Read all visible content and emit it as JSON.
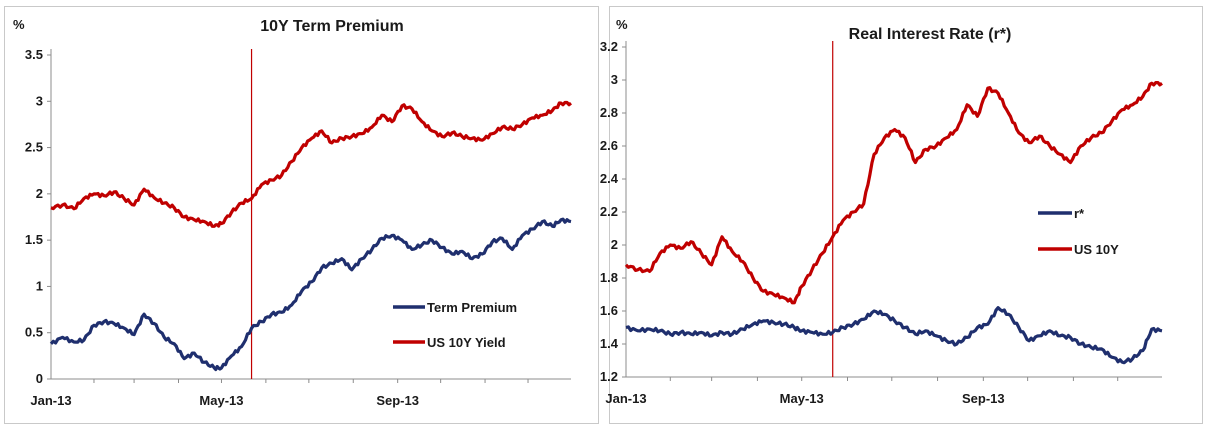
{
  "colors": {
    "navy": "#1f2f6e",
    "red": "#c00000",
    "axis": "#8c8c8c"
  },
  "chart_data": [
    {
      "type": "line",
      "title": "10Y Term Premium",
      "unit_label": "%",
      "xlabel": "",
      "ylabel": "",
      "x_ticks": [
        "Jan-13",
        "May-13",
        "Sep-13"
      ],
      "x_tick_dates": [
        "2013-01-02",
        "2013-05-01",
        "2013-09-01"
      ],
      "xlim": [
        "2013-01-02",
        "2013-12-31"
      ],
      "y_ticks": [
        "0",
        "0.5",
        "1",
        "1.5",
        "2",
        "2.5",
        "3",
        "3.5"
      ],
      "ylim": [
        0,
        3.5
      ],
      "grid": false,
      "legend_position": "bottom-right",
      "vline_date": "2013-05-22",
      "series": [
        {
          "name": "Term Premium",
          "color": "#1f2f6e",
          "x": [
            "2013-01-02",
            "2013-01-10",
            "2013-01-18",
            "2013-01-25",
            "2013-02-01",
            "2013-02-08",
            "2013-02-15",
            "2013-02-22",
            "2013-03-01",
            "2013-03-08",
            "2013-03-15",
            "2013-03-22",
            "2013-03-29",
            "2013-04-05",
            "2013-04-12",
            "2013-04-19",
            "2013-04-26",
            "2013-05-01",
            "2013-05-08",
            "2013-05-15",
            "2013-05-22",
            "2013-05-29",
            "2013-06-05",
            "2013-06-12",
            "2013-06-19",
            "2013-06-26",
            "2013-07-03",
            "2013-07-10",
            "2013-07-17",
            "2013-07-24",
            "2013-07-31",
            "2013-08-07",
            "2013-08-14",
            "2013-08-21",
            "2013-08-28",
            "2013-09-04",
            "2013-09-11",
            "2013-09-18",
            "2013-09-25",
            "2013-10-02",
            "2013-10-09",
            "2013-10-16",
            "2013-10-23",
            "2013-10-30",
            "2013-11-06",
            "2013-11-13",
            "2013-11-20",
            "2013-11-27",
            "2013-12-04",
            "2013-12-11",
            "2013-12-18",
            "2013-12-24",
            "2013-12-31"
          ],
          "y": [
            0.38,
            0.45,
            0.4,
            0.42,
            0.58,
            0.62,
            0.6,
            0.55,
            0.48,
            0.7,
            0.6,
            0.45,
            0.38,
            0.22,
            0.28,
            0.18,
            0.12,
            0.12,
            0.25,
            0.35,
            0.55,
            0.62,
            0.7,
            0.72,
            0.8,
            0.95,
            1.05,
            1.2,
            1.25,
            1.3,
            1.18,
            1.3,
            1.4,
            1.52,
            1.55,
            1.5,
            1.4,
            1.45,
            1.5,
            1.42,
            1.35,
            1.38,
            1.3,
            1.35,
            1.48,
            1.52,
            1.4,
            1.55,
            1.62,
            1.7,
            1.65,
            1.72,
            1.7
          ]
        },
        {
          "name": "US 10Y Yield",
          "color": "#c00000",
          "x": [
            "2013-01-02",
            "2013-01-10",
            "2013-01-18",
            "2013-01-25",
            "2013-02-01",
            "2013-02-08",
            "2013-02-15",
            "2013-02-22",
            "2013-03-01",
            "2013-03-08",
            "2013-03-15",
            "2013-03-22",
            "2013-03-29",
            "2013-04-05",
            "2013-04-12",
            "2013-04-19",
            "2013-04-26",
            "2013-05-01",
            "2013-05-08",
            "2013-05-15",
            "2013-05-22",
            "2013-05-29",
            "2013-06-05",
            "2013-06-12",
            "2013-06-19",
            "2013-06-26",
            "2013-07-03",
            "2013-07-10",
            "2013-07-17",
            "2013-07-24",
            "2013-07-31",
            "2013-08-07",
            "2013-08-14",
            "2013-08-21",
            "2013-08-28",
            "2013-09-04",
            "2013-09-11",
            "2013-09-18",
            "2013-09-25",
            "2013-10-02",
            "2013-10-09",
            "2013-10-16",
            "2013-10-23",
            "2013-10-30",
            "2013-11-06",
            "2013-11-13",
            "2013-11-20",
            "2013-11-27",
            "2013-12-04",
            "2013-12-11",
            "2013-12-18",
            "2013-12-24",
            "2013-12-31"
          ],
          "y": [
            1.85,
            1.88,
            1.84,
            1.95,
            2.0,
            1.98,
            2.02,
            1.95,
            1.88,
            2.05,
            1.96,
            1.9,
            1.85,
            1.75,
            1.72,
            1.7,
            1.65,
            1.68,
            1.8,
            1.9,
            1.95,
            2.1,
            2.15,
            2.2,
            2.35,
            2.5,
            2.6,
            2.68,
            2.55,
            2.6,
            2.62,
            2.65,
            2.72,
            2.85,
            2.78,
            2.95,
            2.92,
            2.78,
            2.68,
            2.62,
            2.66,
            2.62,
            2.6,
            2.58,
            2.65,
            2.72,
            2.7,
            2.75,
            2.82,
            2.85,
            2.9,
            2.98,
            2.98
          ]
        }
      ]
    },
    {
      "type": "line",
      "title": "Real Interest Rate (r*)",
      "unit_label": "%",
      "xlabel": "",
      "ylabel": "",
      "x_ticks": [
        "Jan-13",
        "May-13",
        "Sep-13"
      ],
      "x_tick_dates": [
        "2013-01-02",
        "2013-05-01",
        "2013-09-01"
      ],
      "xlim": [
        "2013-01-02",
        "2013-12-31"
      ],
      "y_ticks": [
        "1.2",
        "1.4",
        "1.6",
        "1.8",
        "2",
        "2.2",
        "2.4",
        "2.6",
        "2.8",
        "3",
        "3.2"
      ],
      "ylim": [
        1.2,
        3.2
      ],
      "grid": false,
      "legend_position": "right",
      "vline_date": "2013-05-22",
      "series": [
        {
          "name": "r*",
          "color": "#1f2f6e",
          "x": [
            "2013-01-02",
            "2013-01-10",
            "2013-01-18",
            "2013-01-25",
            "2013-02-01",
            "2013-02-08",
            "2013-02-15",
            "2013-02-22",
            "2013-03-01",
            "2013-03-08",
            "2013-03-15",
            "2013-03-22",
            "2013-03-29",
            "2013-04-05",
            "2013-04-12",
            "2013-04-19",
            "2013-04-26",
            "2013-05-01",
            "2013-05-08",
            "2013-05-15",
            "2013-05-22",
            "2013-05-29",
            "2013-06-05",
            "2013-06-12",
            "2013-06-19",
            "2013-06-26",
            "2013-07-03",
            "2013-07-10",
            "2013-07-17",
            "2013-07-24",
            "2013-07-31",
            "2013-08-07",
            "2013-08-14",
            "2013-08-21",
            "2013-08-28",
            "2013-09-04",
            "2013-09-11",
            "2013-09-18",
            "2013-09-25",
            "2013-10-02",
            "2013-10-09",
            "2013-10-16",
            "2013-10-23",
            "2013-10-30",
            "2013-11-06",
            "2013-11-13",
            "2013-11-20",
            "2013-11-27",
            "2013-12-04",
            "2013-12-11",
            "2013-12-18",
            "2013-12-24",
            "2013-12-31"
          ],
          "y": [
            1.5,
            1.48,
            1.49,
            1.48,
            1.46,
            1.47,
            1.46,
            1.47,
            1.45,
            1.47,
            1.46,
            1.49,
            1.52,
            1.54,
            1.53,
            1.52,
            1.5,
            1.48,
            1.47,
            1.46,
            1.47,
            1.5,
            1.52,
            1.55,
            1.6,
            1.58,
            1.54,
            1.5,
            1.46,
            1.48,
            1.45,
            1.42,
            1.4,
            1.44,
            1.5,
            1.52,
            1.62,
            1.58,
            1.5,
            1.42,
            1.45,
            1.48,
            1.45,
            1.44,
            1.4,
            1.38,
            1.37,
            1.32,
            1.29,
            1.31,
            1.36,
            1.49,
            1.48
          ]
        },
        {
          "name": "US 10Y",
          "color": "#c00000",
          "x": [
            "2013-01-02",
            "2013-01-10",
            "2013-01-18",
            "2013-01-25",
            "2013-02-01",
            "2013-02-08",
            "2013-02-15",
            "2013-02-22",
            "2013-03-01",
            "2013-03-08",
            "2013-03-15",
            "2013-03-22",
            "2013-03-29",
            "2013-04-05",
            "2013-04-12",
            "2013-04-19",
            "2013-04-26",
            "2013-05-01",
            "2013-05-08",
            "2013-05-15",
            "2013-05-22",
            "2013-05-29",
            "2013-06-05",
            "2013-06-12",
            "2013-06-19",
            "2013-06-26",
            "2013-07-03",
            "2013-07-10",
            "2013-07-17",
            "2013-07-24",
            "2013-07-31",
            "2013-08-07",
            "2013-08-14",
            "2013-08-21",
            "2013-08-28",
            "2013-09-04",
            "2013-09-11",
            "2013-09-18",
            "2013-09-25",
            "2013-10-02",
            "2013-10-09",
            "2013-10-16",
            "2013-10-23",
            "2013-10-30",
            "2013-11-06",
            "2013-11-13",
            "2013-11-20",
            "2013-11-27",
            "2013-12-04",
            "2013-12-11",
            "2013-12-18",
            "2013-12-24",
            "2013-12-31"
          ],
          "y": [
            1.88,
            1.85,
            1.84,
            1.95,
            2.0,
            1.98,
            2.02,
            1.95,
            1.88,
            2.05,
            1.96,
            1.9,
            1.8,
            1.72,
            1.7,
            1.68,
            1.65,
            1.75,
            1.85,
            1.95,
            2.05,
            2.15,
            2.2,
            2.25,
            2.55,
            2.65,
            2.7,
            2.65,
            2.5,
            2.58,
            2.6,
            2.65,
            2.7,
            2.85,
            2.78,
            2.95,
            2.92,
            2.8,
            2.68,
            2.62,
            2.66,
            2.6,
            2.55,
            2.5,
            2.6,
            2.65,
            2.68,
            2.75,
            2.82,
            2.85,
            2.9,
            2.98,
            2.98
          ]
        }
      ]
    }
  ]
}
